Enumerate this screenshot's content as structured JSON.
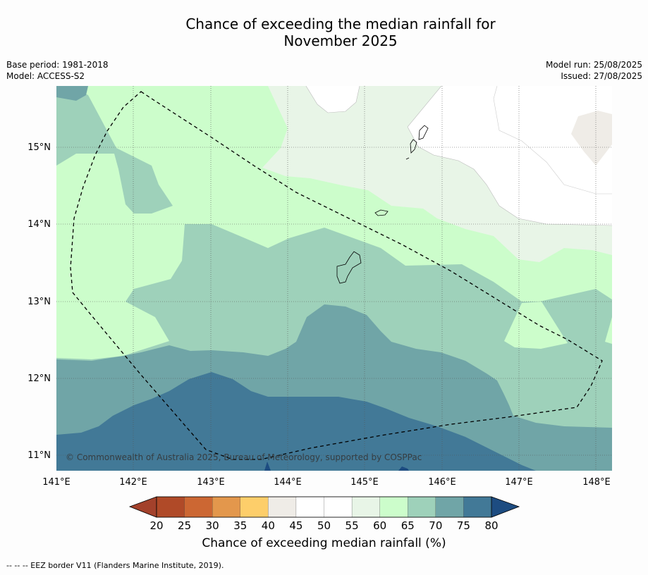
{
  "title": {
    "line1": "Chance of exceeding the median rainfall for",
    "line2": "November 2025"
  },
  "meta_left": {
    "base_period": "Base period: 1981-2018",
    "model": "Model: ACCESS-S2"
  },
  "meta_right": {
    "model_run": "Model run: 25/08/2025",
    "issued": "Issued: 27/08/2025"
  },
  "map": {
    "x_ticks": [
      "141°E",
      "142°E",
      "143°E",
      "144°E",
      "145°E",
      "146°E",
      "147°E",
      "148°E"
    ],
    "y_ticks": [
      "15°N",
      "14°N",
      "13°N",
      "12°N",
      "11°N"
    ],
    "copyright": "© Commonwealth of Australia 2025, Bureau of Meteorology, supported by COSPPac",
    "grid": "dotted"
  },
  "colorbar": {
    "ticks": [
      "20",
      "25",
      "30",
      "35",
      "40",
      "45",
      "50",
      "55",
      "60",
      "65",
      "70",
      "75",
      "80"
    ],
    "colors": [
      "#b04a28",
      "#cc6733",
      "#e3974c",
      "#fdce6a",
      "#efece7",
      "#ffffff",
      "#ffffff",
      "#e8f5e7",
      "#ccfdcb",
      "#9ed1ba",
      "#70a5a7",
      "#427997"
    ],
    "under_color": "#a3412b",
    "over_color": "#1d4c81",
    "label": "Chance of exceeding median rainfall (%)"
  },
  "footnote": "--  --  -- EEZ border V11 (Flanders Marine Institute, 2019)."
}
